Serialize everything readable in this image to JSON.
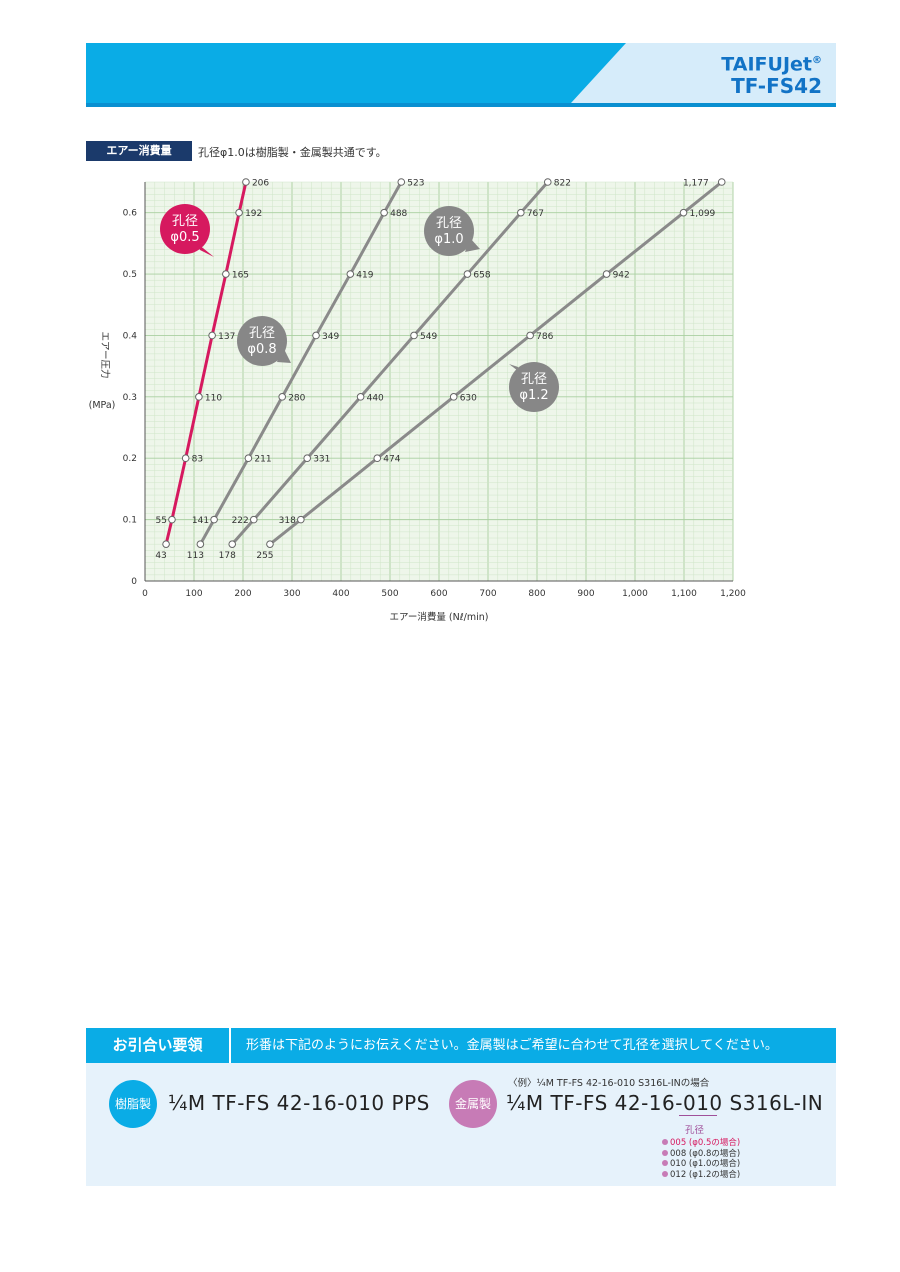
{
  "header": {
    "brand_line1": "TAIFUJet",
    "brand_reg": "®",
    "brand_line2": "TF-FS42"
  },
  "section": {
    "tag": "エアー消費量",
    "note": "孔径φ1.0は樹脂製・金属製共通です。"
  },
  "colors": {
    "accent": "#0aace6",
    "series_05": "#d6195f",
    "series_other": "#8a8a8a"
  },
  "chart_data": {
    "type": "line",
    "xlabel": "エアー消費量 (Nℓ/min)",
    "ylabel_lines": [
      "エアー圧力",
      "(MPa)"
    ],
    "xlim": [
      0,
      1200
    ],
    "ylim": [
      0,
      0.65
    ],
    "x_ticks": [
      "0",
      "100",
      "200",
      "300",
      "400",
      "500",
      "600",
      "700",
      "800",
      "900",
      "1,000",
      "1,100",
      "1,200"
    ],
    "y_ticks": [
      "0",
      "0.1",
      "0.2",
      "0.3",
      "0.4",
      "0.5",
      "0.6"
    ],
    "grid": true,
    "series": [
      {
        "name": "孔径φ0.5",
        "callout": [
          "孔径",
          "φ0.5"
        ],
        "color": "#d6195f",
        "y": [
          0.06,
          0.1,
          0.2,
          0.3,
          0.4,
          0.5,
          0.6,
          0.65
        ],
        "x": [
          43,
          55,
          83,
          110,
          137,
          165,
          192,
          206
        ],
        "labels": [
          "43",
          "55",
          "83",
          "110",
          "137",
          "165",
          "192",
          "206"
        ]
      },
      {
        "name": "孔径φ0.8",
        "callout": [
          "孔径",
          "φ0.8"
        ],
        "color": "#8a8a8a",
        "y": [
          0.06,
          0.1,
          0.2,
          0.3,
          0.4,
          0.5,
          0.6,
          0.65
        ],
        "x": [
          113,
          141,
          211,
          280,
          349,
          419,
          488,
          523
        ],
        "labels": [
          "113",
          "141",
          "211",
          "280",
          "349",
          "419",
          "488",
          "523"
        ]
      },
      {
        "name": "孔径φ1.0",
        "callout": [
          "孔径",
          "φ1.0"
        ],
        "color": "#8a8a8a",
        "y": [
          0.06,
          0.1,
          0.2,
          0.3,
          0.4,
          0.5,
          0.6,
          0.65
        ],
        "x": [
          178,
          222,
          331,
          440,
          549,
          658,
          767,
          822
        ],
        "labels": [
          "178",
          "222",
          "331",
          "440",
          "549",
          "658",
          "767",
          "822"
        ]
      },
      {
        "name": "孔径φ1.2",
        "callout": [
          "孔径",
          "φ1.2"
        ],
        "color": "#8a8a8a",
        "y": [
          0.06,
          0.1,
          0.2,
          0.3,
          0.4,
          0.5,
          0.6,
          0.65
        ],
        "x": [
          255,
          318,
          474,
          630,
          786,
          942,
          1099,
          1177
        ],
        "labels": [
          "255",
          "318",
          "474",
          "630",
          "786",
          "942",
          "1,099",
          "1,177"
        ]
      }
    ]
  },
  "order": {
    "title": "お引合い要領",
    "desc": "形番は下記のようにお伝えください。金属製はご希望に合わせて孔径を選択してください。",
    "resin_label": "樹脂製",
    "resin_code": "¼M TF-FS 42-16-010 PPS",
    "metal_label": "金属製",
    "example": "〈例〉¼M TF-FS 42-16-010 S316L-INの場合",
    "metal_code": "¼M TF-FS 42-16-010 S316L-IN",
    "hole_label": "孔径",
    "options": [
      "005 (φ0.5の場合)",
      "008 (φ0.8の場合)",
      "010 (φ1.0の場合)",
      "012 (φ1.2の場合)"
    ]
  }
}
